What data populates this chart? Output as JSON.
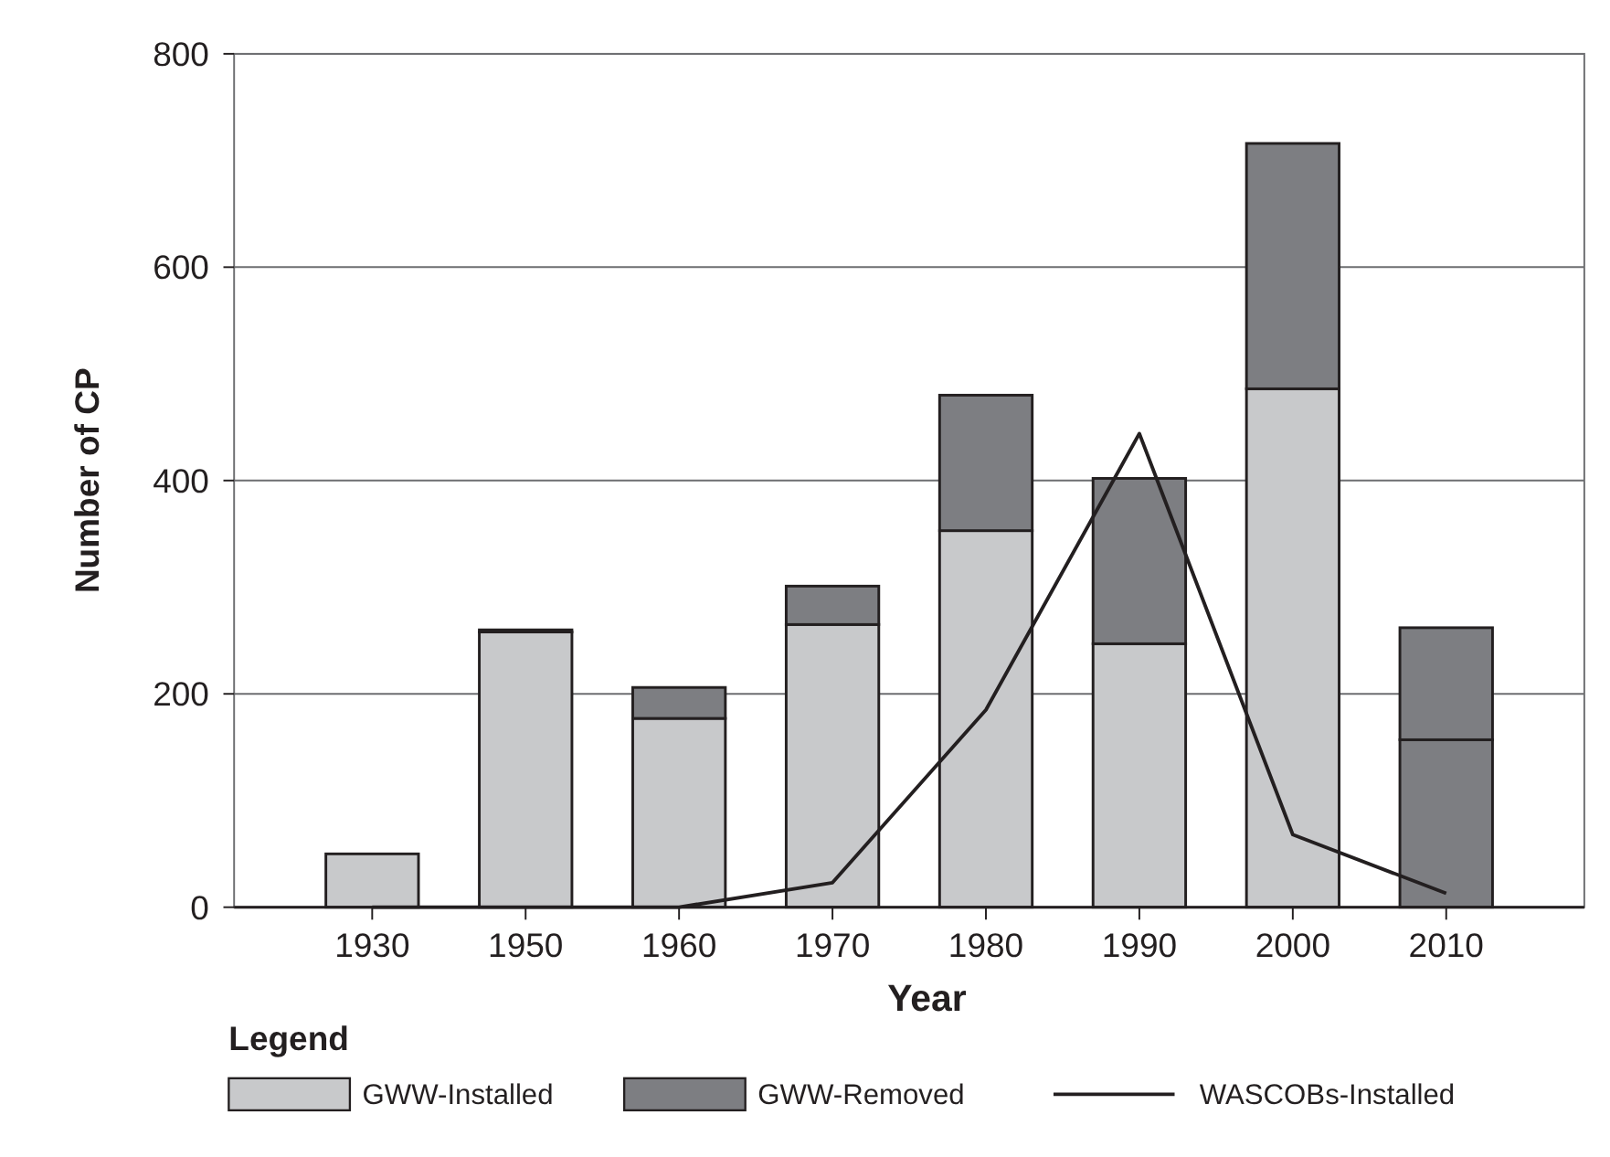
{
  "chart_data": {
    "type": "bar",
    "stacked": true,
    "xlabel": "Year",
    "ylabel": "Number of CP",
    "legend_title": "Legend",
    "legend": "bottom",
    "grid": "y",
    "marker": "none",
    "categories": [
      "1930",
      "1950",
      "1960",
      "1970",
      "1980",
      "1990",
      "2000",
      "2010"
    ],
    "series": [
      {
        "name": "GWW-Installed",
        "color": "#c8c9cb",
        "colors": [
          "#c8c9cb",
          "#c8c9cb",
          "#c8c9cb",
          "#c8c9cb",
          "#c8c9cb",
          "#c8c9cb",
          "#c8c9cb",
          "#7d7e82"
        ],
        "values": [
          50,
          258,
          177,
          265,
          353,
          247,
          486,
          157
        ]
      },
      {
        "name": "GWW-Removed",
        "color": "#7d7e82",
        "values": [
          0,
          2,
          29,
          36,
          127,
          155,
          230,
          105
        ]
      },
      {
        "name": "WASCOBs-Installed",
        "type": "line",
        "color": "#231f20",
        "values": [
          0,
          0,
          0,
          23,
          185,
          444,
          68,
          13
        ]
      }
    ],
    "ylim": [
      0,
      800
    ],
    "yticks": [
      0,
      200,
      400,
      600,
      800
    ]
  }
}
